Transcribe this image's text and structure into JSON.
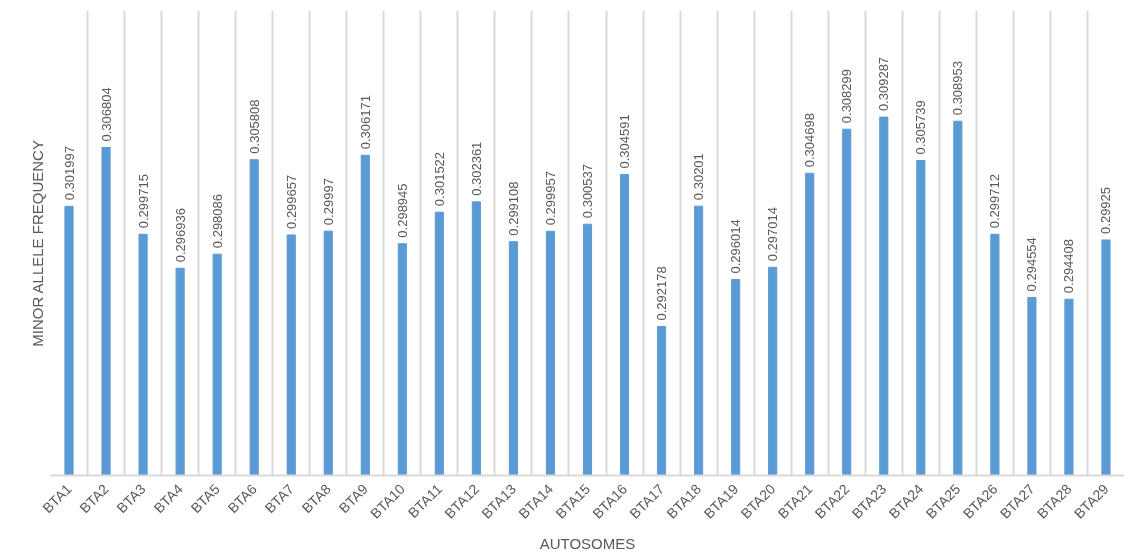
{
  "chart_data": {
    "type": "bar",
    "xlabel": "AUTOSOMES",
    "ylabel": "MINOR ALLELE FREQUENCY",
    "categories": [
      "BTA1",
      "BTA2",
      "BTA3",
      "BTA4",
      "BTA5",
      "BTA6",
      "BTA7",
      "BTA8",
      "BTA9",
      "BTA10",
      "BTA11",
      "BTA12",
      "BTA13",
      "BTA14",
      "BTA15",
      "BTA16",
      "BTA17",
      "BTA18",
      "BTA19",
      "BTA20",
      "BTA21",
      "BTA22",
      "BTA23",
      "BTA24",
      "BTA25",
      "BTA26",
      "BTA27",
      "BTA28",
      "BTA29"
    ],
    "values": [
      0.301997,
      0.306804,
      0.299715,
      0.296936,
      0.298086,
      0.305808,
      0.299657,
      0.29997,
      0.306171,
      0.298945,
      0.301522,
      0.302361,
      0.299108,
      0.299957,
      0.300537,
      0.304591,
      0.292178,
      0.30201,
      0.296014,
      0.297014,
      0.304698,
      0.308299,
      0.309287,
      0.305739,
      0.308953,
      0.299712,
      0.294554,
      0.294408,
      0.29925
    ],
    "color": "#5b9bd5",
    "ylim": [
      0.28,
      0.318
    ],
    "data_labels": true,
    "grid": "x",
    "tick_labels": "x"
  }
}
